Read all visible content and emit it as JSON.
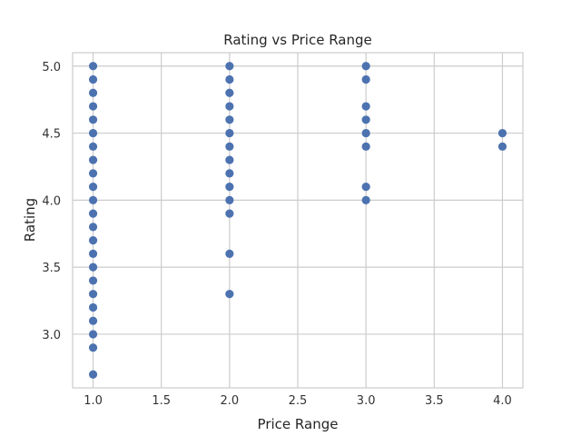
{
  "chart_data": {
    "type": "scatter",
    "title": "Rating vs Price Range",
    "xlabel": "Price Range",
    "ylabel": "Rating",
    "xlim": [
      0.85,
      4.15
    ],
    "ylim": [
      2.6,
      5.1
    ],
    "xticks": [
      1.0,
      1.5,
      2.0,
      2.5,
      3.0,
      3.5,
      4.0
    ],
    "yticks": [
      3.0,
      3.5,
      4.0,
      4.5,
      5.0
    ],
    "xtick_labels": [
      "1.0",
      "1.5",
      "2.0",
      "2.5",
      "3.0",
      "3.5",
      "4.0"
    ],
    "ytick_labels": [
      "3.0",
      "3.5",
      "4.0",
      "4.5",
      "5.0"
    ],
    "grid": true,
    "marker_color": "#4c72b0",
    "points": [
      {
        "x": 1,
        "y": 5.0
      },
      {
        "x": 1,
        "y": 4.9
      },
      {
        "x": 1,
        "y": 4.8
      },
      {
        "x": 1,
        "y": 4.7
      },
      {
        "x": 1,
        "y": 4.6
      },
      {
        "x": 1,
        "y": 4.5
      },
      {
        "x": 1,
        "y": 4.4
      },
      {
        "x": 1,
        "y": 4.3
      },
      {
        "x": 1,
        "y": 4.2
      },
      {
        "x": 1,
        "y": 4.1
      },
      {
        "x": 1,
        "y": 4.0
      },
      {
        "x": 1,
        "y": 3.9
      },
      {
        "x": 1,
        "y": 3.8
      },
      {
        "x": 1,
        "y": 3.7
      },
      {
        "x": 1,
        "y": 3.6
      },
      {
        "x": 1,
        "y": 3.5
      },
      {
        "x": 1,
        "y": 3.4
      },
      {
        "x": 1,
        "y": 3.3
      },
      {
        "x": 1,
        "y": 3.2
      },
      {
        "x": 1,
        "y": 3.1
      },
      {
        "x": 1,
        "y": 3.0
      },
      {
        "x": 1,
        "y": 2.9
      },
      {
        "x": 1,
        "y": 2.7
      },
      {
        "x": 2,
        "y": 5.0
      },
      {
        "x": 2,
        "y": 4.9
      },
      {
        "x": 2,
        "y": 4.8
      },
      {
        "x": 2,
        "y": 4.7
      },
      {
        "x": 2,
        "y": 4.6
      },
      {
        "x": 2,
        "y": 4.5
      },
      {
        "x": 2,
        "y": 4.4
      },
      {
        "x": 2,
        "y": 4.3
      },
      {
        "x": 2,
        "y": 4.2
      },
      {
        "x": 2,
        "y": 4.1
      },
      {
        "x": 2,
        "y": 4.0
      },
      {
        "x": 2,
        "y": 3.9
      },
      {
        "x": 2,
        "y": 3.6
      },
      {
        "x": 2,
        "y": 3.3
      },
      {
        "x": 3,
        "y": 5.0
      },
      {
        "x": 3,
        "y": 4.9
      },
      {
        "x": 3,
        "y": 4.7
      },
      {
        "x": 3,
        "y": 4.6
      },
      {
        "x": 3,
        "y": 4.5
      },
      {
        "x": 3,
        "y": 4.4
      },
      {
        "x": 3,
        "y": 4.1
      },
      {
        "x": 3,
        "y": 4.0
      },
      {
        "x": 4,
        "y": 4.5
      },
      {
        "x": 4,
        "y": 4.4
      }
    ]
  }
}
